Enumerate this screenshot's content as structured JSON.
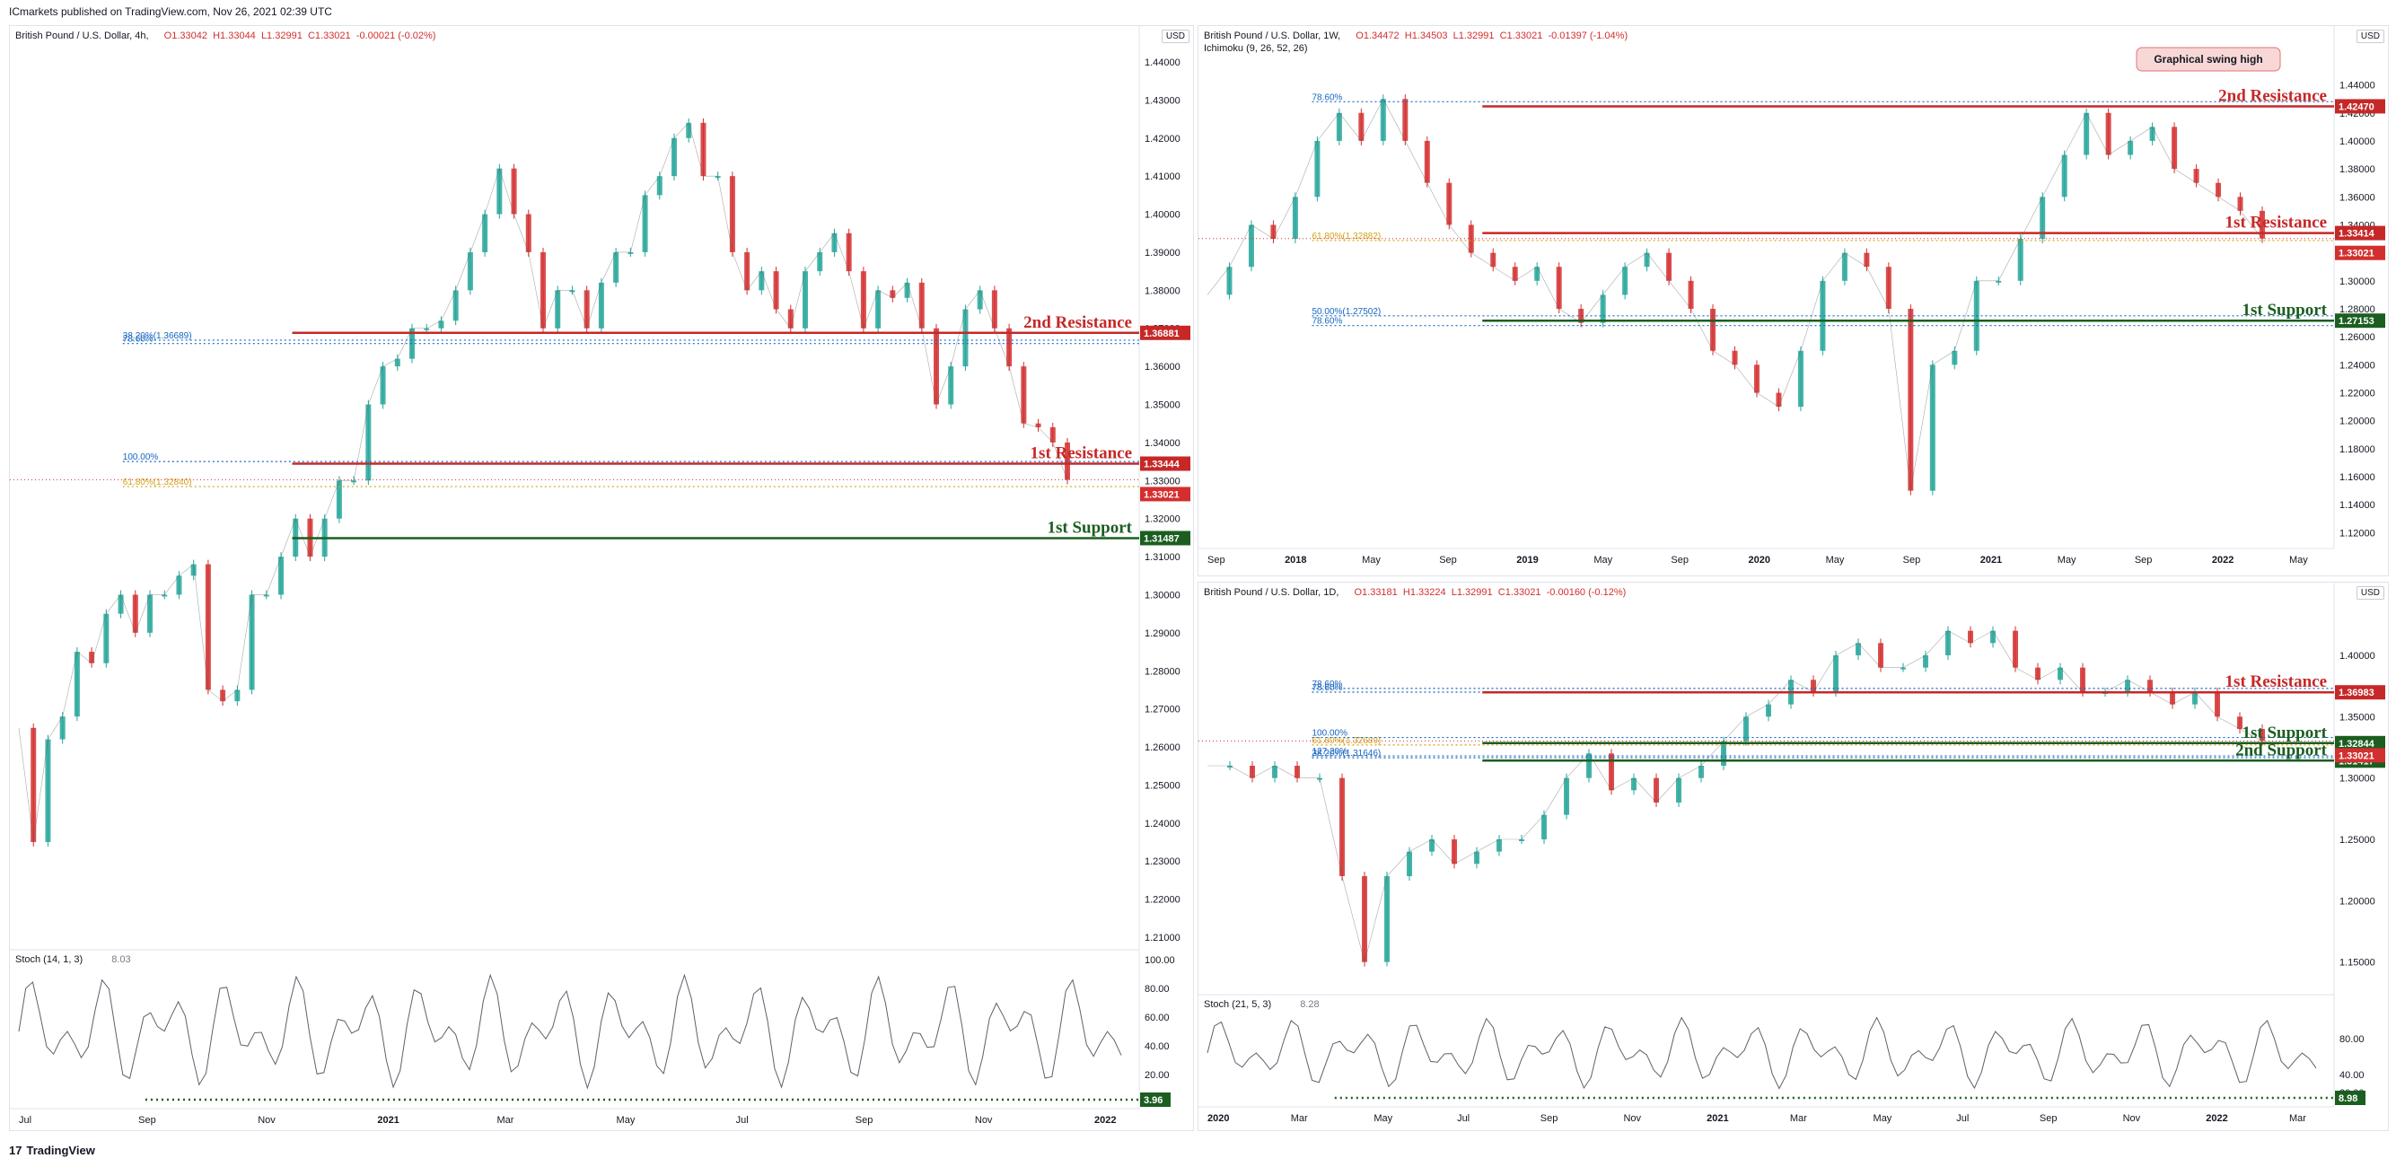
{
  "header": {
    "published": "ICmarkets published on TradingView.com, Nov 26, 2021 02:39 UTC"
  },
  "footer": {
    "brand": "TradingView",
    "logo": "17"
  },
  "colors": {
    "bull": "#26a69a",
    "bear": "#d32f2f",
    "resistance": "#c62828",
    "support": "#1b5e20",
    "fib": "#1565c0",
    "fib618": "#d4a017"
  },
  "chart_data": [
    {
      "id": "h4",
      "type": "line",
      "title": "British Pound / U.S. Dollar, 4h,",
      "ohlc": {
        "o": "O1.33042",
        "h": "H1.33044",
        "l": "L1.32991",
        "c": "C1.33021",
        "chg": "-0.00021 (-0.02%)"
      },
      "currency": "USD",
      "ylim": [
        1.21,
        1.44
      ],
      "y_ticks": [
        "1.44000",
        "1.43000",
        "1.42000",
        "1.41000",
        "1.40000",
        "1.39000",
        "1.38000",
        "1.37000",
        "1.36000",
        "1.35000",
        "1.34000",
        "1.33000",
        "1.32000",
        "1.31000",
        "1.30000",
        "1.29000",
        "1.28000",
        "1.27000",
        "1.26000",
        "1.25000",
        "1.24000",
        "1.23000",
        "1.22000",
        "1.21000"
      ],
      "x_ticks": [
        "Jul",
        "Sep",
        "Nov",
        "2021",
        "Mar",
        "May",
        "Jul",
        "Sep",
        "Nov",
        "2022"
      ],
      "series": [
        {
          "values": [
            1.265,
            1.235,
            1.262,
            1.268,
            1.285,
            1.282,
            1.295,
            1.3,
            1.29,
            1.3,
            1.3,
            1.305,
            1.308,
            1.275,
            1.272,
            1.275,
            1.3,
            1.3,
            1.31,
            1.32,
            1.31,
            1.32,
            1.33,
            1.33,
            1.35,
            1.36,
            1.362,
            1.37,
            1.37,
            1.372,
            1.38,
            1.39,
            1.4,
            1.412,
            1.4,
            1.39,
            1.37,
            1.38,
            1.38,
            1.37,
            1.382,
            1.39,
            1.39,
            1.405,
            1.41,
            1.42,
            1.424,
            1.41,
            1.41,
            1.39,
            1.38,
            1.385,
            1.375,
            1.37,
            1.385,
            1.39,
            1.395,
            1.385,
            1.37,
            1.38,
            1.378,
            1.382,
            1.37,
            1.35,
            1.36,
            1.375,
            1.38,
            1.37,
            1.36,
            1.345,
            1.344,
            1.34,
            1.3302
          ]
        }
      ],
      "levels": [
        {
          "label": "2nd Resistance",
          "value": 1.36881,
          "tag": "1.36881",
          "kind": "resistance"
        },
        {
          "label": "1st Resistance",
          "value": 1.33444,
          "tag": "1.33444",
          "kind": "resistance"
        },
        {
          "label": "1st Support",
          "value": 1.31487,
          "tag": "1.31487",
          "kind": "support"
        }
      ],
      "last_price": "1.33021",
      "fib": [
        {
          "label": "38.20%(1.36689)",
          "value": 1.36689
        },
        {
          "label": "61.80%(1.32840)",
          "value": 1.3284
        },
        {
          "label": "78.60%",
          "value": 1.366
        },
        {
          "label": "100.00%",
          "value": 1.335
        }
      ],
      "indicator": {
        "label": "Stoch (14, 1, 3)",
        "value": "8.03",
        "tag": "3.96",
        "ticks": [
          "100.00",
          "80.00",
          "60.00",
          "40.00",
          "20.00"
        ]
      }
    },
    {
      "id": "w1",
      "type": "line",
      "title": "British Pound / U.S. Dollar, 1W,",
      "ohlc": {
        "o": "O1.34472",
        "h": "H1.34503",
        "l": "L1.32991",
        "c": "C1.33021",
        "chg": "-0.01397 (-1.04%)"
      },
      "subtitle": "Ichimoku (9, 26, 52, 26)",
      "currency": "USD",
      "ylim": [
        1.11,
        1.45
      ],
      "y_ticks": [
        "1.44000",
        "1.42000",
        "1.40000",
        "1.38000",
        "1.36000",
        "1.34000",
        "1.32000",
        "1.30000",
        "1.28000",
        "1.26000",
        "1.24000",
        "1.22000",
        "1.20000",
        "1.18000",
        "1.16000",
        "1.14000",
        "1.12000"
      ],
      "x_ticks": [
        "Sep",
        "2018",
        "May",
        "Sep",
        "2019",
        "May",
        "Sep",
        "2020",
        "May",
        "Sep",
        "2021",
        "May",
        "Sep",
        "2022",
        "May"
      ],
      "series": [
        {
          "values": [
            1.29,
            1.31,
            1.34,
            1.33,
            1.36,
            1.4,
            1.42,
            1.4,
            1.43,
            1.4,
            1.37,
            1.34,
            1.32,
            1.31,
            1.3,
            1.31,
            1.28,
            1.27,
            1.29,
            1.31,
            1.32,
            1.3,
            1.28,
            1.25,
            1.24,
            1.22,
            1.21,
            1.25,
            1.3,
            1.32,
            1.31,
            1.28,
            1.15,
            1.24,
            1.25,
            1.3,
            1.3,
            1.33,
            1.36,
            1.39,
            1.42,
            1.39,
            1.4,
            1.41,
            1.38,
            1.37,
            1.36,
            1.35,
            1.3302
          ]
        }
      ],
      "levels": [
        {
          "label": "2nd Resistance",
          "value": 1.4247,
          "tag": "1.42470",
          "kind": "resistance"
        },
        {
          "label": "1st Resistance",
          "value": 1.33414,
          "tag": "1.33414",
          "kind": "resistance"
        },
        {
          "label": "1st Support",
          "value": 1.27153,
          "tag": "1.27153",
          "kind": "support"
        }
      ],
      "last_price": "1.33021",
      "fib": [
        {
          "label": "78.60%",
          "value": 1.428
        },
        {
          "label": "61.80%(1.32882)",
          "value": 1.3288
        },
        {
          "label": "50.00%(1.27502)",
          "value": 1.275
        },
        {
          "label": "78.60%",
          "value": 1.268
        }
      ],
      "annotation": "Graphical swing high",
      "fib_note": "61.80%"
    },
    {
      "id": "d1",
      "type": "line",
      "title": "British Pound / U.S. Dollar, 1D,",
      "ohlc": {
        "o": "O1.33181",
        "h": "H1.33224",
        "l": "L1.32991",
        "c": "C1.33021",
        "chg": "-0.00160 (-0.12%)"
      },
      "currency": "USD",
      "ylim": [
        1.13,
        1.43
      ],
      "y_ticks": [
        "1.40000",
        "1.35000",
        "1.30000",
        "1.25000",
        "1.20000",
        "1.15000"
      ],
      "x_ticks": [
        "2020",
        "Mar",
        "May",
        "Jul",
        "Sep",
        "Nov",
        "2021",
        "Mar",
        "May",
        "Jul",
        "Sep",
        "Nov",
        "2022",
        "Mar"
      ],
      "series": [
        {
          "values": [
            1.31,
            1.31,
            1.3,
            1.31,
            1.3,
            1.3,
            1.22,
            1.15,
            1.22,
            1.24,
            1.25,
            1.23,
            1.24,
            1.25,
            1.25,
            1.27,
            1.3,
            1.32,
            1.29,
            1.3,
            1.28,
            1.3,
            1.31,
            1.33,
            1.35,
            1.36,
            1.38,
            1.37,
            1.4,
            1.41,
            1.39,
            1.39,
            1.4,
            1.42,
            1.41,
            1.42,
            1.39,
            1.38,
            1.39,
            1.37,
            1.37,
            1.38,
            1.37,
            1.36,
            1.37,
            1.35,
            1.34,
            1.3302
          ]
        }
      ],
      "levels": [
        {
          "label": "1st Resistance",
          "value": 1.36983,
          "tag": "1.36983",
          "kind": "resistance"
        },
        {
          "label": "1st Support",
          "value": 1.32844,
          "tag": "1.32844",
          "kind": "support"
        },
        {
          "label": "2nd Support",
          "value": 1.31417,
          "tag": "1.31417",
          "kind": "support"
        }
      ],
      "last_price": "1.33021",
      "fib": [
        {
          "label": "78.60%",
          "value": 1.37
        },
        {
          "label": "61.80%(1.32689)",
          "value": 1.3269
        },
        {
          "label": "38.20%(1.31646)",
          "value": 1.3165
        },
        {
          "label": "78.60%",
          "value": 1.373
        },
        {
          "label": "100.00%",
          "value": 1.333
        },
        {
          "label": "127.20%",
          "value": 1.318
        }
      ],
      "indicator": {
        "label": "Stoch (21, 5, 3)",
        "value": "8.28",
        "tag": "8.98",
        "ticks": [
          "80.00",
          "40.00",
          "20.00"
        ]
      }
    }
  ]
}
